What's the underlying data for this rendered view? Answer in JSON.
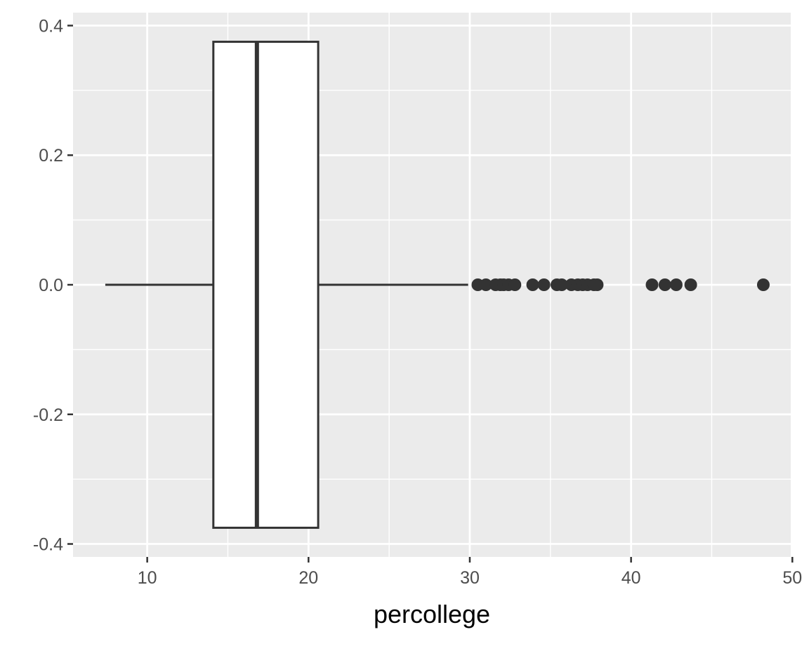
{
  "chart_data": {
    "type": "boxplot",
    "orientation": "horizontal",
    "title": "",
    "xlabel": "percollege",
    "ylabel": "",
    "xlim": [
      5.4,
      49.9
    ],
    "ylim": [
      -0.42,
      0.42
    ],
    "x_ticks": [
      10,
      20,
      30,
      40,
      50
    ],
    "x_tick_labels": [
      "10",
      "20",
      "30",
      "40",
      "50"
    ],
    "y_ticks": [
      0.4,
      0.2,
      0.0,
      -0.2,
      -0.4
    ],
    "y_tick_labels": [
      "0.4",
      "0.2",
      "0.0",
      "-0.2",
      "-0.4"
    ],
    "x_minor_ticks": [
      15,
      25,
      35,
      45
    ],
    "y_minor_ticks": [
      0.3,
      0.1,
      -0.1,
      -0.3
    ],
    "grid": true,
    "panel_background": "#ebebeb",
    "grid_color": "#ffffff",
    "box_fill": "#ffffff",
    "line_color": "#333333",
    "box": {
      "y": 0.0,
      "height": 0.75,
      "whisker_low": 7.4,
      "q1": 14.1,
      "median": 16.8,
      "q3": 20.6,
      "whisker_high": 29.9
    },
    "outliers": [
      30.5,
      31.0,
      31.6,
      31.9,
      32.1,
      32.4,
      32.8,
      33.9,
      34.6,
      35.4,
      35.7,
      36.3,
      36.7,
      37.0,
      37.3,
      37.7,
      37.9,
      41.3,
      42.1,
      42.8,
      43.7,
      48.2
    ]
  }
}
